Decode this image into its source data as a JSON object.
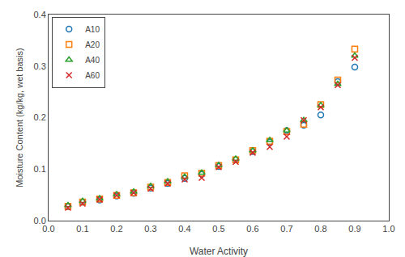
{
  "chart_data": {
    "type": "scatter",
    "xlabel": "Water Activity",
    "ylabel": "Moisture Content (kg/kg, wet basis)",
    "xlim": [
      0,
      1.0
    ],
    "ylim": [
      0,
      0.4
    ],
    "xticks": [
      {
        "value": 0,
        "label": "0.0"
      },
      0.1,
      0.2,
      0.3,
      0.4,
      0.5,
      0.6,
      0.7,
      0.8,
      0.9,
      {
        "value": 1.0,
        "label": "1.0"
      }
    ],
    "yticks": [
      {
        "value": 0,
        "label": "0.0"
      },
      0.1,
      0.2,
      0.3,
      0.4
    ],
    "grid": false,
    "legend": "upper left",
    "series": [
      {
        "name": "A10",
        "marker": "circle",
        "x": [
          0.057,
          0.1,
          0.15,
          0.2,
          0.25,
          0.3,
          0.35,
          0.4,
          0.45,
          0.5,
          0.55,
          0.6,
          0.65,
          0.7,
          0.75,
          0.8,
          0.85,
          0.9
        ],
        "values": [
          0.027,
          0.036,
          0.04,
          0.048,
          0.053,
          0.063,
          0.072,
          0.082,
          0.09,
          0.105,
          0.118,
          0.134,
          0.152,
          0.175,
          0.185,
          0.205,
          0.27,
          0.298
        ]
      },
      {
        "name": "A20",
        "marker": "square",
        "x": [
          0.057,
          0.1,
          0.15,
          0.2,
          0.25,
          0.3,
          0.35,
          0.4,
          0.45,
          0.5,
          0.55,
          0.6,
          0.65,
          0.7,
          0.75,
          0.8,
          0.85,
          0.9
        ],
        "values": [
          0.028,
          0.036,
          0.042,
          0.049,
          0.054,
          0.065,
          0.074,
          0.087,
          0.092,
          0.107,
          0.118,
          0.136,
          0.154,
          0.173,
          0.187,
          0.225,
          0.273,
          0.333
        ]
      },
      {
        "name": "A40",
        "marker": "triangle",
        "x": [
          0.057,
          0.1,
          0.15,
          0.2,
          0.25,
          0.3,
          0.35,
          0.4,
          0.45,
          0.5,
          0.55,
          0.6,
          0.65,
          0.7,
          0.75,
          0.8,
          0.85,
          0.9
        ],
        "values": [
          0.03,
          0.038,
          0.043,
          0.051,
          0.056,
          0.067,
          0.076,
          0.085,
          0.093,
          0.108,
          0.12,
          0.136,
          0.156,
          0.175,
          0.195,
          0.224,
          0.265,
          0.32
        ]
      },
      {
        "name": "A60",
        "marker": "x",
        "x": [
          0.057,
          0.1,
          0.15,
          0.2,
          0.25,
          0.3,
          0.35,
          0.4,
          0.45,
          0.5,
          0.55,
          0.6,
          0.65,
          0.7,
          0.75,
          0.8,
          0.85,
          0.9
        ],
        "values": [
          0.025,
          0.033,
          0.041,
          0.049,
          0.054,
          0.062,
          0.072,
          0.08,
          0.083,
          0.104,
          0.114,
          0.132,
          0.143,
          0.163,
          0.195,
          0.22,
          0.263,
          0.316
        ]
      }
    ]
  }
}
